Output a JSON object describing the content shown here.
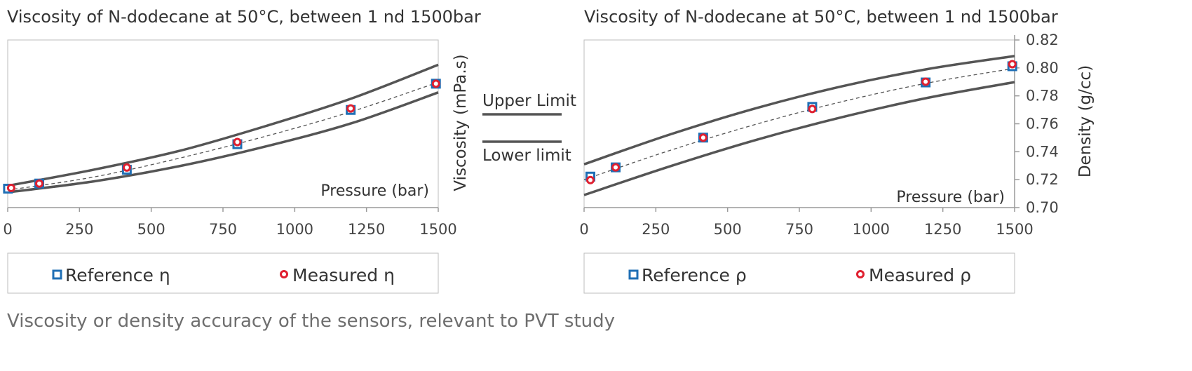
{
  "caption": "Viscosity or density accuracy of the sensors, relevant to PVT study",
  "limits_legend": {
    "upper_label": "Upper Limit",
    "lower_label": "Lower limit"
  },
  "colors": {
    "reference": "#1f6fb5",
    "measured": "#e02030",
    "limit_line": "#555555",
    "axis": "#9a9a9a"
  },
  "chart_data": [
    {
      "type": "scatter",
      "title": "Viscosity of N-dodecane at 50°C, between 1 nd 1500bar",
      "xlabel": "Pressure (bar)",
      "ylabel": "Viscosity (mPa.s)",
      "xlim": [
        0,
        1500
      ],
      "ylim": [
        1.0,
        3.3
      ],
      "x_ticks": [
        0,
        250,
        500,
        750,
        1000,
        1250,
        1500
      ],
      "x_tick_labels": [
        "0",
        "250",
        "500",
        "750",
        "1000",
        "1250",
        "1500"
      ],
      "y_axis_side": "right",
      "y_ticks": [],
      "y_tick_labels": [],
      "legend": {
        "reference_label": "Reference η",
        "measured_label": "Measured η"
      },
      "series": [
        {
          "name": "Reference η",
          "marker": "square",
          "x": [
            1,
            110,
            415,
            800,
            1195,
            1492
          ],
          "y": [
            1.26,
            1.33,
            1.52,
            1.87,
            2.34,
            2.7
          ]
        },
        {
          "name": "Measured η",
          "marker": "circle",
          "x": [
            12,
            110,
            415,
            800,
            1195,
            1492
          ],
          "y": [
            1.27,
            1.33,
            1.55,
            1.9,
            2.36,
            2.7
          ]
        },
        {
          "name": "Trend",
          "style": "dashed",
          "x": [
            0,
            300,
            600,
            900,
            1200,
            1500
          ],
          "y": [
            1.24,
            1.42,
            1.68,
            1.98,
            2.32,
            2.72
          ]
        },
        {
          "name": "Upper Limit",
          "style": "solid",
          "x": [
            0,
            300,
            600,
            900,
            1200,
            1500
          ],
          "y": [
            1.3,
            1.52,
            1.78,
            2.12,
            2.5,
            2.96
          ]
        },
        {
          "name": "Lower limit",
          "style": "solid",
          "x": [
            0,
            300,
            600,
            900,
            1200,
            1500
          ],
          "y": [
            1.21,
            1.36,
            1.57,
            1.84,
            2.16,
            2.58
          ]
        }
      ]
    },
    {
      "type": "scatter",
      "title": "Viscosity of N-dodecane at 50°C, between 1 nd 1500bar",
      "xlabel": "Pressure (bar)",
      "ylabel": "Density (g/cc)",
      "xlim": [
        0,
        1500
      ],
      "ylim": [
        0.7,
        0.82
      ],
      "x_ticks": [
        0,
        250,
        500,
        750,
        1000,
        1250,
        1500
      ],
      "x_tick_labels": [
        "0",
        "250",
        "500",
        "750",
        "1000",
        "1250",
        "1500"
      ],
      "y_axis_side": "right",
      "y_ticks": [
        0.7,
        0.72,
        0.74,
        0.76,
        0.78,
        0.8,
        0.82
      ],
      "y_tick_labels": [
        "0.70",
        "0.72",
        "0.74",
        "0.76",
        "0.78",
        "0.80",
        "0.82"
      ],
      "legend": {
        "reference_label": "Reference ρ",
        "measured_label": "Measured ρ"
      },
      "series": [
        {
          "name": "Reference ρ",
          "marker": "square",
          "x": [
            22,
            110,
            415,
            795,
            1190,
            1492
          ],
          "y": [
            0.7222,
            0.7288,
            0.7501,
            0.7721,
            0.7896,
            0.8012
          ]
        },
        {
          "name": "Measured ρ",
          "marker": "circle",
          "x": [
            22,
            110,
            415,
            795,
            1190,
            1492
          ],
          "y": [
            0.7197,
            0.7288,
            0.7501,
            0.7706,
            0.7901,
            0.8027
          ]
        },
        {
          "name": "Trend",
          "style": "dashed",
          "x": [
            0,
            300,
            600,
            900,
            1200,
            1500
          ],
          "y": [
            0.72,
            0.741,
            0.7597,
            0.7759,
            0.7893,
            0.7997
          ]
        },
        {
          "name": "Upper Limit",
          "style": "solid",
          "x": [
            0,
            300,
            600,
            900,
            1200,
            1500
          ],
          "y": [
            0.731,
            0.7524,
            0.7712,
            0.7869,
            0.7993,
            0.8085
          ]
        },
        {
          "name": "Lower limit",
          "style": "solid",
          "x": [
            0,
            300,
            600,
            900,
            1200,
            1500
          ],
          "y": [
            0.709,
            0.7296,
            0.7485,
            0.7648,
            0.7787,
            0.7898
          ]
        }
      ]
    }
  ]
}
